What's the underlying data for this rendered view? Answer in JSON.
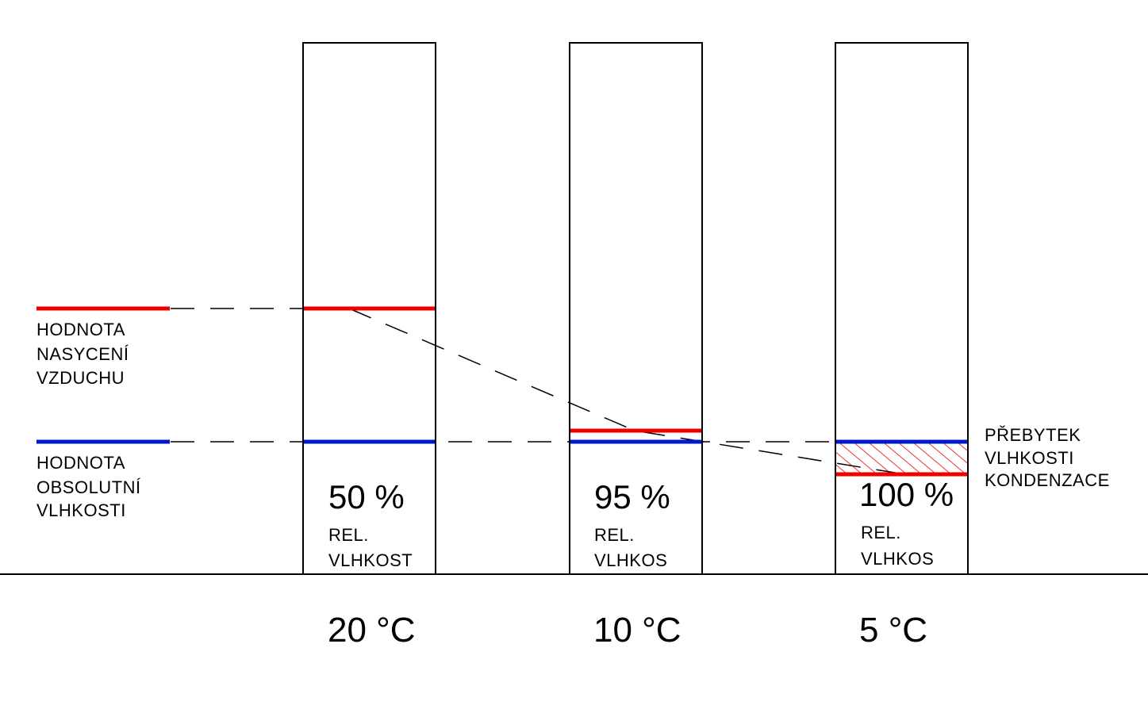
{
  "colors": {
    "saturation": "#ee0000",
    "absolute": "#0018cc",
    "outline": "#000000",
    "hatch": "#ee0000"
  },
  "legend": {
    "saturation": {
      "line1": "HODNOTA",
      "line2": "NASYCENÍ",
      "line3": "VZDUCHU"
    },
    "absolute": {
      "line1": "HODNOTA",
      "line2": "OBSOLUTNÍ",
      "line3": "VLHKOSTI"
    }
  },
  "columns": [
    {
      "humidity": "50 %",
      "label1": "REL.",
      "label2": "VLHKOST",
      "temperature": "20 °C"
    },
    {
      "humidity": "95 %",
      "label1": "REL.",
      "label2": "VLHKOS",
      "temperature": "10 °C"
    },
    {
      "humidity": "100 %",
      "label1": "REL.",
      "label2": "VLHKOS",
      "temperature": "5 °C"
    }
  ],
  "excess_note": {
    "line1": "PŘEBYTEK",
    "line2": "VLHKOSTI",
    "line3": "KONDENZACE"
  }
}
